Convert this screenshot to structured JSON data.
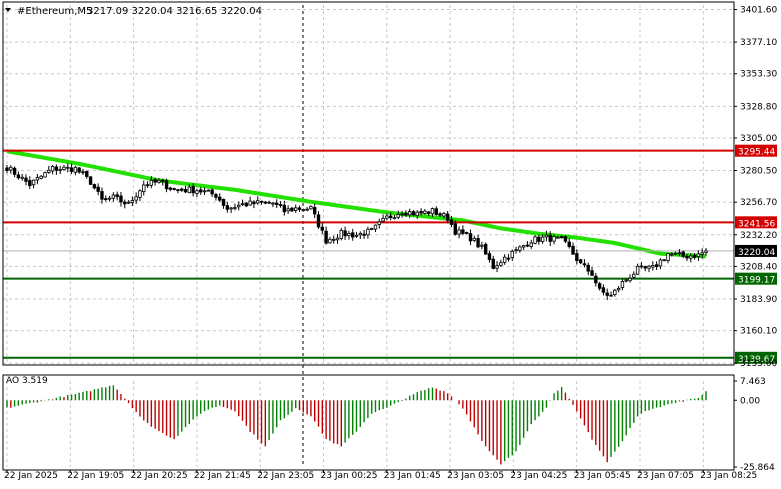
{
  "header": {
    "symbol": "#Ethereum,M5",
    "ohlc": "3217.09 3220.04 3216.65 3220.04"
  },
  "colors": {
    "background": "#ffffff",
    "grid": "#c8c8c8",
    "candle": "#000000",
    "ma": "#22e000",
    "resistance": "#d40000",
    "support": "#006400",
    "current": "#000000",
    "ao_up": "#008000",
    "ao_down": "#c00000"
  },
  "chart_data": [
    {
      "type": "candlestick",
      "title": "#Ethereum,M5",
      "ylim": [
        3135.0,
        3405.0
      ],
      "y_ticks": [
        "3401.60",
        "3377.10",
        "3353.30",
        "3328.80",
        "3305.00",
        "3280.50",
        "3256.70",
        "3232.20",
        "3208.40",
        "3183.90",
        "3160.10",
        "3135.60"
      ],
      "x_ticks": [
        "22 Jan 2025",
        "22 Jan 19:05",
        "22 Jan 20:25",
        "22 Jan 21:45",
        "22 Jan 23:05",
        "23 Jan 00:25",
        "23 Jan 01:45",
        "23 Jan 03:05",
        "23 Jan 04:25",
        "23 Jan 05:45",
        "23 Jan 07:05",
        "23 Jan 08:25"
      ],
      "close_anchors": [
        [
          0,
          3283
        ],
        [
          6,
          3270
        ],
        [
          12,
          3282
        ],
        [
          18,
          3282
        ],
        [
          22,
          3272
        ],
        [
          25,
          3258
        ],
        [
          28,
          3260
        ],
        [
          32,
          3255
        ],
        [
          36,
          3270
        ],
        [
          40,
          3272
        ],
        [
          44,
          3266
        ],
        [
          50,
          3266
        ],
        [
          55,
          3262
        ],
        [
          58,
          3252
        ],
        [
          62,
          3255
        ],
        [
          66,
          3256
        ],
        [
          70,
          3256
        ],
        [
          73,
          3250
        ],
        [
          76,
          3252
        ],
        [
          80,
          3252
        ],
        [
          84,
          3228
        ],
        [
          88,
          3233
        ],
        [
          92,
          3232
        ],
        [
          96,
          3235
        ],
        [
          100,
          3245
        ],
        [
          104,
          3250
        ],
        [
          108,
          3248
        ],
        [
          112,
          3250
        ],
        [
          116,
          3245
        ],
        [
          118,
          3235
        ],
        [
          122,
          3230
        ],
        [
          125,
          3222
        ],
        [
          128,
          3208
        ],
        [
          131,
          3215
        ],
        [
          134,
          3220
        ],
        [
          138,
          3228
        ],
        [
          142,
          3230
        ],
        [
          146,
          3228
        ],
        [
          148,
          3222
        ],
        [
          151,
          3210
        ],
        [
          154,
          3203
        ],
        [
          156,
          3190
        ],
        [
          159,
          3186
        ],
        [
          162,
          3196
        ],
        [
          166,
          3206
        ],
        [
          170,
          3207
        ],
        [
          174,
          3218
        ],
        [
          178,
          3216
        ],
        [
          182,
          3217
        ],
        [
          184,
          3220.04
        ]
      ],
      "moving_average": {
        "anchors": [
          [
            0,
            3295
          ],
          [
            20,
            3285
          ],
          [
            40,
            3273
          ],
          [
            60,
            3266
          ],
          [
            80,
            3257
          ],
          [
            100,
            3249
          ],
          [
            120,
            3243
          ],
          [
            130,
            3237
          ],
          [
            140,
            3233
          ],
          [
            150,
            3230
          ],
          [
            160,
            3226
          ],
          [
            172,
            3218
          ],
          [
            184,
            3216
          ]
        ]
      },
      "levels": [
        {
          "label": "3295.44",
          "value": 3295.44,
          "kind": "resistance"
        },
        {
          "label": "3241.56",
          "value": 3241.56,
          "kind": "resistance"
        },
        {
          "label": "3199.17",
          "value": 3199.17,
          "kind": "support"
        },
        {
          "label": "3139.67",
          "value": 3139.67,
          "kind": "support"
        }
      ],
      "current_price": {
        "label": "3220.04",
        "value": 3220.04
      }
    },
    {
      "type": "bar",
      "title": "AO 3.519",
      "indicator": "AO",
      "value_label": "3.519",
      "ylim": [
        -25.864,
        7.463
      ],
      "y_ticks": [
        "7.463",
        "0.00",
        "-25.864"
      ],
      "anchors": [
        [
          0,
          -3
        ],
        [
          10,
          0
        ],
        [
          20,
          3
        ],
        [
          28,
          6
        ],
        [
          32,
          -1
        ],
        [
          36,
          -8
        ],
        [
          40,
          -12
        ],
        [
          44,
          -15
        ],
        [
          48,
          -9
        ],
        [
          52,
          -4
        ],
        [
          56,
          -2
        ],
        [
          60,
          -4
        ],
        [
          64,
          -12
        ],
        [
          68,
          -18
        ],
        [
          72,
          -8
        ],
        [
          76,
          -3
        ],
        [
          80,
          -6
        ],
        [
          84,
          -15
        ],
        [
          88,
          -18
        ],
        [
          92,
          -12
        ],
        [
          96,
          -5
        ],
        [
          100,
          -3
        ],
        [
          104,
          0
        ],
        [
          108,
          3
        ],
        [
          112,
          5
        ],
        [
          116,
          3
        ],
        [
          120,
          -3
        ],
        [
          126,
          -18
        ],
        [
          130,
          -25
        ],
        [
          134,
          -20
        ],
        [
          138,
          -9
        ],
        [
          142,
          -3
        ],
        [
          144,
          3
        ],
        [
          146,
          5
        ],
        [
          149,
          -2
        ],
        [
          154,
          -15
        ],
        [
          158,
          -24
        ],
        [
          162,
          -16
        ],
        [
          166,
          -6
        ],
        [
          170,
          -3
        ],
        [
          176,
          -1
        ],
        [
          182,
          1
        ],
        [
          184,
          3.519
        ]
      ]
    }
  ]
}
